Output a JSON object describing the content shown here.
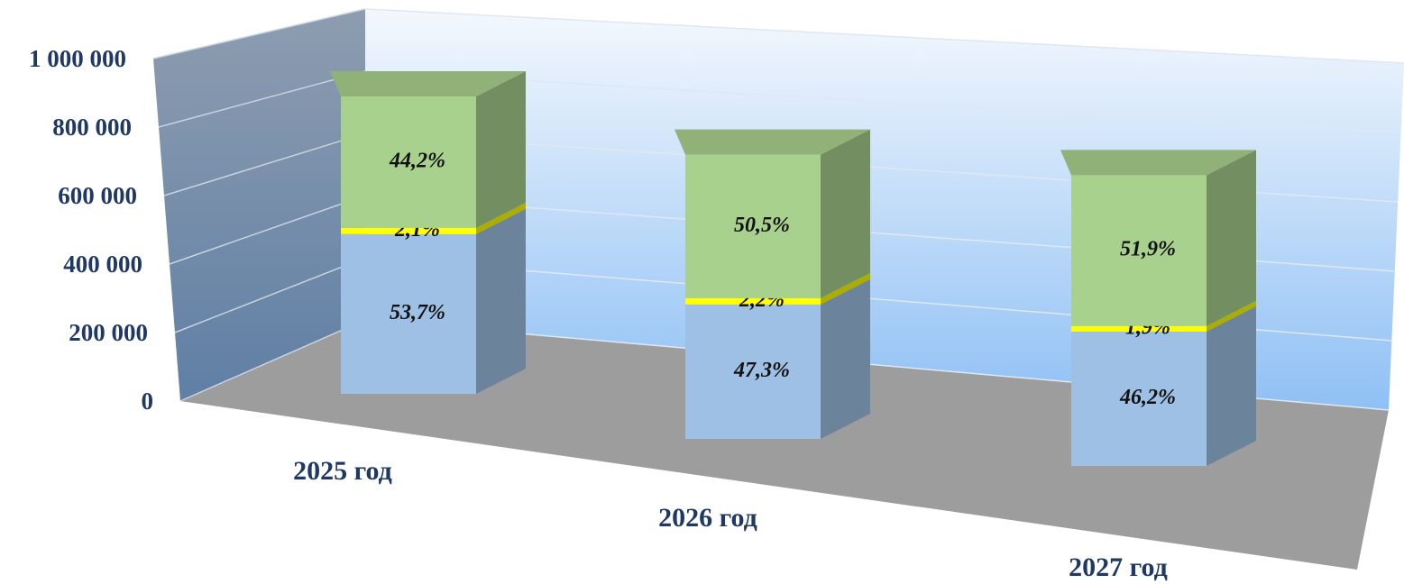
{
  "chart_data": {
    "type": "bar3d_stacked",
    "categories": [
      "2025 год",
      "2026 год",
      "2027 год"
    ],
    "series": [
      {
        "color": "#9dc0e4",
        "values": [
          483300,
          406780,
          406560
        ],
        "share_labels": [
          "53,7%",
          "47,3%",
          "46,2%"
        ]
      },
      {
        "color": "#ffff00",
        "values": [
          18900,
          18920,
          16720
        ],
        "share_labels": [
          "2,1%",
          "2,2%",
          "1,9%"
        ]
      },
      {
        "color": "#a9d18e",
        "values": [
          397800,
          434300,
          456720
        ],
        "share_labels": [
          "44,2%",
          "50,5%",
          "51,9%"
        ]
      }
    ],
    "ylim": [
      0,
      1000000
    ],
    "yticks": [
      0,
      {
        "value": 200000,
        "label": "200 000"
      },
      {
        "value": 400000,
        "label": "400 000"
      },
      {
        "value": 600000,
        "label": "600 000"
      },
      {
        "value": 800000,
        "label": "800 000"
      },
      {
        "value": 1000000,
        "label": "1 000 000"
      }
    ],
    "grid": true
  }
}
